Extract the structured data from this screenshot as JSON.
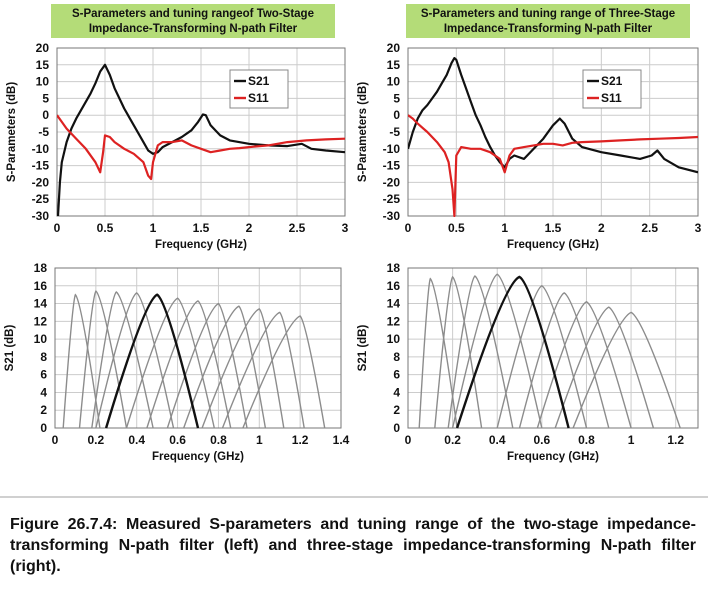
{
  "caption": "Figure 26.7.4: Measured S-parameters and tuning range of the two-stage impedance-transforming N-path filter (left) and three-stage impedance-transforming N-path filter (right).",
  "colors": {
    "title_bg": "#b4dc78",
    "s21": "#111111",
    "s11": "#dd2222",
    "tuning_grey": "#8c8c8c",
    "grid": "#cccccc"
  },
  "chart_data": [
    {
      "id": "tl",
      "type": "line",
      "title": [
        "S-Parameters and tuning rangeof Two-Stage",
        "Impedance-Transforming N-path Filter"
      ],
      "xlabel": "Frequency (GHz)",
      "ylabel": "S-Parameters (dB)",
      "xlim": [
        0,
        3
      ],
      "ylim": [
        -30,
        20
      ],
      "xticks": [
        0,
        0.5,
        1,
        1.5,
        2,
        2.5,
        3
      ],
      "yticks": [
        20,
        15,
        10,
        5,
        0,
        -5,
        -10,
        -15,
        -20,
        -25,
        -30
      ],
      "grid": true,
      "legend": [
        "S21",
        "S11"
      ],
      "legend_position": "upper-right",
      "series": [
        {
          "name": "S21",
          "color": "#111111",
          "points": [
            [
              0.01,
              -30
            ],
            [
              0.03,
              -20
            ],
            [
              0.05,
              -14
            ],
            [
              0.1,
              -8
            ],
            [
              0.15,
              -4
            ],
            [
              0.2,
              -1
            ],
            [
              0.25,
              1.5
            ],
            [
              0.3,
              4
            ],
            [
              0.35,
              6.5
            ],
            [
              0.4,
              9.5
            ],
            [
              0.45,
              13
            ],
            [
              0.5,
              15
            ],
            [
              0.55,
              12
            ],
            [
              0.6,
              8
            ],
            [
              0.65,
              5
            ],
            [
              0.7,
              2
            ],
            [
              0.75,
              -0.5
            ],
            [
              0.8,
              -3
            ],
            [
              0.85,
              -5.5
            ],
            [
              0.9,
              -8
            ],
            [
              0.95,
              -10.5
            ],
            [
              1.0,
              -11.5
            ],
            [
              1.05,
              -11
            ],
            [
              1.1,
              -9.5
            ],
            [
              1.2,
              -8
            ],
            [
              1.3,
              -6.5
            ],
            [
              1.4,
              -4.5
            ],
            [
              1.47,
              -2
            ],
            [
              1.52,
              0.2
            ],
            [
              1.55,
              0
            ],
            [
              1.6,
              -3
            ],
            [
              1.7,
              -6
            ],
            [
              1.8,
              -7.5
            ],
            [
              2.0,
              -8.5
            ],
            [
              2.2,
              -9
            ],
            [
              2.4,
              -9.2
            ],
            [
              2.55,
              -8.5
            ],
            [
              2.65,
              -10
            ],
            [
              2.8,
              -10.5
            ],
            [
              3.0,
              -11
            ]
          ]
        },
        {
          "name": "S11",
          "color": "#dd2222",
          "points": [
            [
              0.0,
              0
            ],
            [
              0.05,
              -2
            ],
            [
              0.1,
              -4
            ],
            [
              0.2,
              -7
            ],
            [
              0.3,
              -10
            ],
            [
              0.4,
              -14
            ],
            [
              0.45,
              -17
            ],
            [
              0.48,
              -11
            ],
            [
              0.5,
              -6
            ],
            [
              0.55,
              -6.5
            ],
            [
              0.6,
              -8
            ],
            [
              0.7,
              -10
            ],
            [
              0.8,
              -11.5
            ],
            [
              0.9,
              -14
            ],
            [
              0.95,
              -18
            ],
            [
              0.98,
              -19
            ],
            [
              1.0,
              -14
            ],
            [
              1.05,
              -9
            ],
            [
              1.1,
              -8
            ],
            [
              1.2,
              -8
            ],
            [
              1.3,
              -7.5
            ],
            [
              1.4,
              -9
            ],
            [
              1.5,
              -10
            ],
            [
              1.6,
              -11
            ],
            [
              1.7,
              -10.5
            ],
            [
              1.8,
              -10
            ],
            [
              1.9,
              -9.8
            ],
            [
              2.0,
              -9.5
            ],
            [
              2.2,
              -9
            ],
            [
              2.4,
              -8
            ],
            [
              2.6,
              -7.5
            ],
            [
              2.8,
              -7.2
            ],
            [
              3.0,
              -7
            ]
          ]
        }
      ]
    },
    {
      "id": "tr",
      "type": "line",
      "title": [
        "S-Parameters and tuning range of Three-Stage",
        "Impedance-Transforming N-path Filter"
      ],
      "xlabel": "Frequency (GHz)",
      "ylabel": "S-Parameters (dB)",
      "xlim": [
        0,
        3
      ],
      "ylim": [
        -30,
        20
      ],
      "xticks": [
        0,
        0.5,
        1,
        1.5,
        2,
        2.5,
        3
      ],
      "yticks": [
        20,
        15,
        10,
        5,
        0,
        -5,
        -10,
        -15,
        -20,
        -25,
        -30
      ],
      "grid": true,
      "legend": [
        "S21",
        "S11"
      ],
      "legend_position": "upper-right",
      "series": [
        {
          "name": "S21",
          "color": "#111111",
          "points": [
            [
              0.0,
              -10
            ],
            [
              0.05,
              -5
            ],
            [
              0.1,
              -1
            ],
            [
              0.15,
              1.5
            ],
            [
              0.2,
              3
            ],
            [
              0.25,
              5
            ],
            [
              0.3,
              7
            ],
            [
              0.35,
              9.5
            ],
            [
              0.4,
              12
            ],
            [
              0.45,
              15.5
            ],
            [
              0.48,
              17
            ],
            [
              0.5,
              16.5
            ],
            [
              0.55,
              12
            ],
            [
              0.6,
              8
            ],
            [
              0.65,
              4
            ],
            [
              0.7,
              0
            ],
            [
              0.75,
              -3
            ],
            [
              0.8,
              -6.5
            ],
            [
              0.85,
              -9.5
            ],
            [
              0.9,
              -12
            ],
            [
              0.95,
              -14
            ],
            [
              1.0,
              -15.5
            ],
            [
              1.05,
              -13
            ],
            [
              1.1,
              -12
            ],
            [
              1.2,
              -13
            ],
            [
              1.3,
              -10
            ],
            [
              1.4,
              -7
            ],
            [
              1.5,
              -3
            ],
            [
              1.57,
              -1
            ],
            [
              1.62,
              -2.5
            ],
            [
              1.7,
              -7
            ],
            [
              1.8,
              -9.5
            ],
            [
              2.0,
              -11
            ],
            [
              2.2,
              -12
            ],
            [
              2.4,
              -13
            ],
            [
              2.52,
              -12
            ],
            [
              2.58,
              -10.5
            ],
            [
              2.65,
              -13
            ],
            [
              2.8,
              -15.5
            ],
            [
              3.0,
              -17
            ]
          ]
        },
        {
          "name": "S11",
          "color": "#dd2222",
          "points": [
            [
              0.0,
              0
            ],
            [
              0.05,
              -1
            ],
            [
              0.1,
              -2.5
            ],
            [
              0.2,
              -5
            ],
            [
              0.3,
              -8
            ],
            [
              0.38,
              -11
            ],
            [
              0.42,
              -14
            ],
            [
              0.46,
              -22
            ],
            [
              0.48,
              -30
            ],
            [
              0.5,
              -12
            ],
            [
              0.55,
              -9.5
            ],
            [
              0.65,
              -10
            ],
            [
              0.75,
              -10
            ],
            [
              0.85,
              -11
            ],
            [
              0.95,
              -13
            ],
            [
              1.0,
              -17
            ],
            [
              1.05,
              -12
            ],
            [
              1.1,
              -10
            ],
            [
              1.2,
              -9.5
            ],
            [
              1.3,
              -9
            ],
            [
              1.4,
              -8.5
            ],
            [
              1.5,
              -8.5
            ],
            [
              1.6,
              -9
            ],
            [
              1.7,
              -8.2
            ],
            [
              1.8,
              -8
            ],
            [
              2.0,
              -7.8
            ],
            [
              2.2,
              -7.5
            ],
            [
              2.4,
              -7.2
            ],
            [
              2.6,
              -7
            ],
            [
              2.8,
              -6.8
            ],
            [
              3.0,
              -6.5
            ]
          ]
        }
      ]
    },
    {
      "id": "bl",
      "type": "line",
      "title": [],
      "xlabel": "Frequency (GHz)",
      "ylabel": "S21 (dB)",
      "xlim": [
        0,
        1.4
      ],
      "ylim": [
        0,
        18
      ],
      "xticks": [
        0,
        0.2,
        0.4,
        0.6,
        0.8,
        1,
        1.2,
        1.4
      ],
      "yticks": [
        18,
        16,
        14,
        12,
        10,
        8,
        6,
        4,
        2,
        0
      ],
      "grid": true,
      "tuning_curves": {
        "highlight_index": 4,
        "curves": [
          {
            "peak_x": 0.1,
            "peak_y": 15.0,
            "left_zero": 0.04,
            "right_zero": 0.22
          },
          {
            "peak_x": 0.2,
            "peak_y": 15.4,
            "left_zero": 0.12,
            "right_zero": 0.35
          },
          {
            "peak_x": 0.3,
            "peak_y": 15.3,
            "left_zero": 0.18,
            "right_zero": 0.48
          },
          {
            "peak_x": 0.4,
            "peak_y": 15.2,
            "left_zero": 0.2,
            "right_zero": 0.58
          },
          {
            "peak_x": 0.5,
            "peak_y": 15.0,
            "left_zero": 0.25,
            "right_zero": 0.7
          },
          {
            "peak_x": 0.6,
            "peak_y": 14.6,
            "left_zero": 0.35,
            "right_zero": 0.78
          },
          {
            "peak_x": 0.7,
            "peak_y": 14.3,
            "left_zero": 0.45,
            "right_zero": 0.86
          },
          {
            "peak_x": 0.8,
            "peak_y": 14.0,
            "left_zero": 0.55,
            "right_zero": 0.94
          },
          {
            "peak_x": 0.9,
            "peak_y": 13.7,
            "left_zero": 0.63,
            "right_zero": 1.03
          },
          {
            "peak_x": 1.0,
            "peak_y": 13.4,
            "left_zero": 0.72,
            "right_zero": 1.12
          },
          {
            "peak_x": 1.1,
            "peak_y": 13.0,
            "left_zero": 0.82,
            "right_zero": 1.22
          },
          {
            "peak_x": 1.2,
            "peak_y": 12.6,
            "left_zero": 0.92,
            "right_zero": 1.32
          }
        ]
      }
    },
    {
      "id": "br",
      "type": "line",
      "title": [],
      "xlabel": "Frequency (GHz)",
      "ylabel": "S21 (dB)",
      "xlim": [
        0,
        1.3
      ],
      "ylim": [
        0,
        18
      ],
      "xticks": [
        0,
        0.2,
        0.4,
        0.6,
        0.8,
        1,
        1.2
      ],
      "yticks": [
        18,
        16,
        14,
        12,
        10,
        8,
        6,
        4,
        2,
        0
      ],
      "grid": true,
      "tuning_curves": {
        "highlight_index": 4,
        "curves": [
          {
            "peak_x": 0.1,
            "peak_y": 16.8,
            "left_zero": 0.05,
            "right_zero": 0.22
          },
          {
            "peak_x": 0.2,
            "peak_y": 17.0,
            "left_zero": 0.12,
            "right_zero": 0.33
          },
          {
            "peak_x": 0.3,
            "peak_y": 17.1,
            "left_zero": 0.18,
            "right_zero": 0.47
          },
          {
            "peak_x": 0.4,
            "peak_y": 17.3,
            "left_zero": 0.2,
            "right_zero": 0.6
          },
          {
            "peak_x": 0.5,
            "peak_y": 17.0,
            "left_zero": 0.22,
            "right_zero": 0.72
          },
          {
            "peak_x": 0.6,
            "peak_y": 16.0,
            "left_zero": 0.4,
            "right_zero": 0.8
          },
          {
            "peak_x": 0.7,
            "peak_y": 15.2,
            "left_zero": 0.5,
            "right_zero": 0.9
          },
          {
            "peak_x": 0.8,
            "peak_y": 14.2,
            "left_zero": 0.58,
            "right_zero": 1.0
          },
          {
            "peak_x": 0.9,
            "peak_y": 13.6,
            "left_zero": 0.66,
            "right_zero": 1.1
          },
          {
            "peak_x": 1.0,
            "peak_y": 13.0,
            "left_zero": 0.74,
            "right_zero": 1.22
          }
        ]
      }
    }
  ]
}
